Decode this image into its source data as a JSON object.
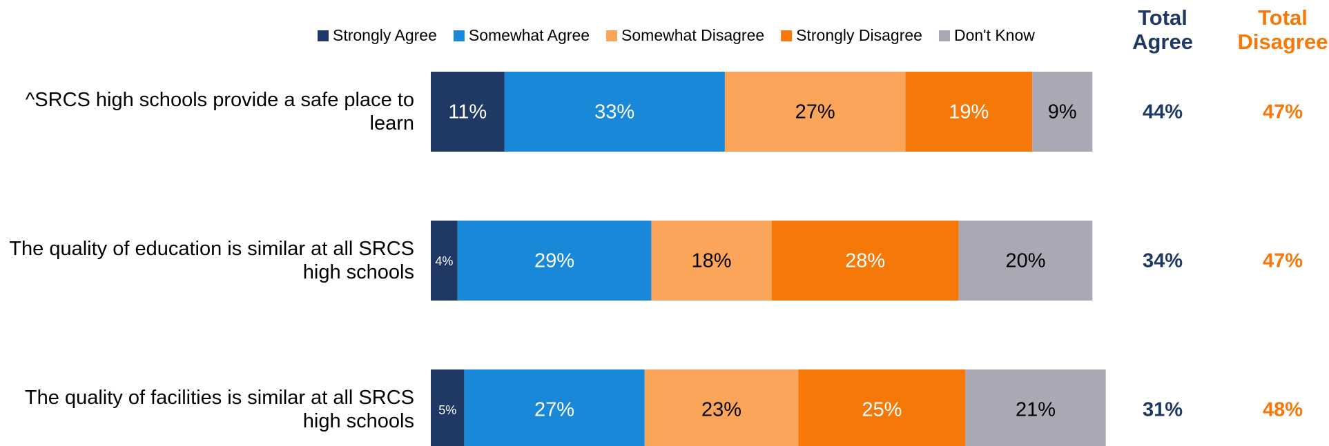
{
  "chart_data": {
    "type": "stacked-bar-horizontal",
    "categories": [
      "^SRCS high schools provide a safe place to learn",
      "The quality of education is similar at all SRCS high schools",
      "The quality of facilities is similar at all SRCS high schools"
    ],
    "series": [
      {
        "name": "Strongly Agree",
        "color": "#1f3864",
        "label_color": "#ffffff",
        "values": [
          11,
          4,
          5
        ],
        "value_labels": [
          "11%",
          "4%",
          "5%"
        ]
      },
      {
        "name": "Somewhat Agree",
        "color": "#1a88d8",
        "label_color": "#ffffff",
        "values": [
          33,
          29,
          27
        ],
        "value_labels": [
          "33%",
          "29%",
          "27%"
        ]
      },
      {
        "name": "Somewhat Disagree",
        "color": "#fba55a",
        "label_color": "#000000",
        "values": [
          27,
          18,
          23
        ],
        "value_labels": [
          "27%",
          "18%",
          "23%"
        ]
      },
      {
        "name": "Strongly Disagree",
        "color": "#f57808",
        "label_color": "#ffffff",
        "values": [
          19,
          28,
          25
        ],
        "value_labels": [
          "19%",
          "28%",
          "25%"
        ]
      },
      {
        "name": "Don't Know",
        "color": "#a8a9b4",
        "label_color": "#000000",
        "values": [
          9,
          20,
          21
        ],
        "value_labels": [
          "9%",
          "20%",
          "21%"
        ]
      }
    ],
    "totals": [
      {
        "name": "Total Agree",
        "color": "#1f3864",
        "values": [
          44,
          34,
          31
        ],
        "value_labels": [
          "44%",
          "34%",
          "31%"
        ]
      },
      {
        "name": "Total Disagree",
        "color": "#f57808",
        "values": [
          47,
          47,
          48
        ],
        "value_labels": [
          "47%",
          "47%",
          "48%"
        ]
      }
    ],
    "xlim": [
      0,
      100
    ]
  }
}
